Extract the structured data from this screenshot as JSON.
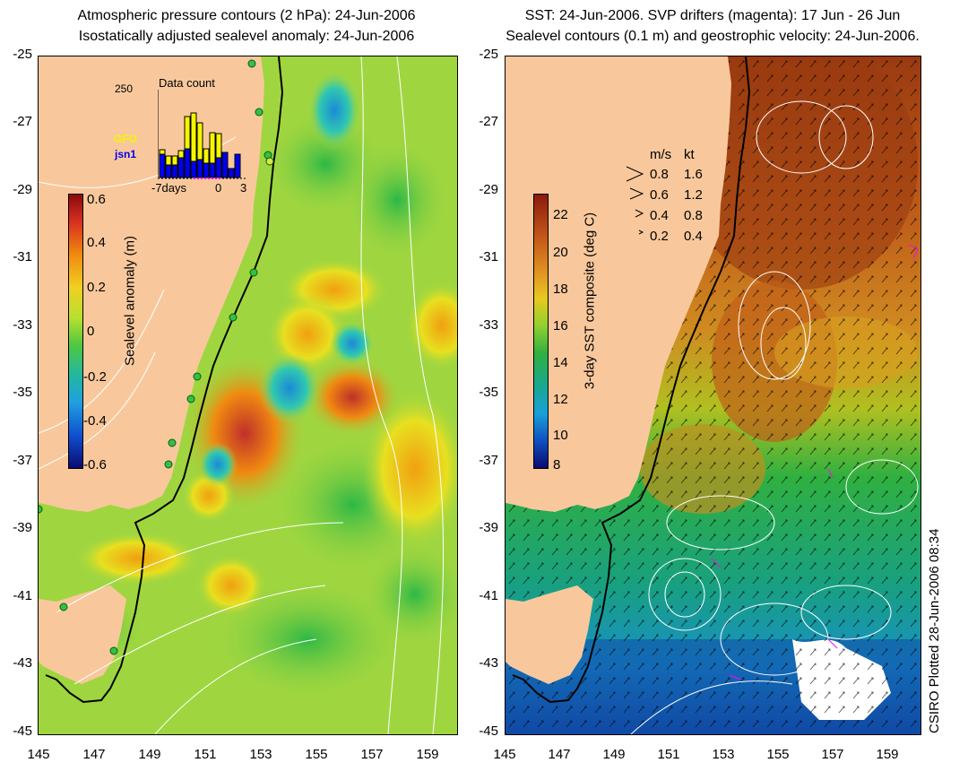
{
  "left": {
    "title_line1": "Atmospheric pressure contours (2 hPa): 24-Jun-2006",
    "title_line2": "Isostatically adjusted sealevel anomaly: 24-Jun-2006",
    "colorbar_label": "Sealevel anomaly (m)",
    "colorbar_ticks": [
      "0.6",
      "0.4",
      "0.2",
      "0",
      "-0.2",
      "-0.4",
      "-0.6"
    ],
    "inset": {
      "title": "Data count",
      "ymax": "250",
      "series": [
        "GFO",
        "jsn1"
      ],
      "series_colors": [
        "#f5f500",
        "#0000ee"
      ],
      "xticks": [
        "-7days",
        "0",
        "3"
      ]
    }
  },
  "right": {
    "title_line1": "SST: 24-Jun-2006. SVP drifters (magenta): 17 Jun - 26 Jun",
    "title_line2": "Sealevel contours (0.1 m) and geostrophic velocity: 24-Jun-2006.",
    "colorbar_label": "3-day SST composite (deg C)",
    "colorbar_ticks": [
      "22",
      "20",
      "18",
      "16",
      "14",
      "12",
      "10",
      "8"
    ],
    "velocity_legend": {
      "header_ms": "m/s",
      "header_kt": "kt",
      "rows": [
        {
          "ms": "0.8",
          "kt": "1.6"
        },
        {
          "ms": "0.6",
          "kt": "1.2"
        },
        {
          "ms": "0.4",
          "kt": "0.8"
        },
        {
          "ms": "0.2",
          "kt": "0.4"
        }
      ]
    }
  },
  "axes": {
    "y_ticks": [
      "-25",
      "-27",
      "-29",
      "-31",
      "-33",
      "-35",
      "-37",
      "-39",
      "-41",
      "-43",
      "-45"
    ],
    "x_ticks": [
      "145",
      "147",
      "149",
      "151",
      "153",
      "155",
      "157",
      "159"
    ]
  },
  "credit": "CSIRO Plotted 28-Jun-2006 08:34",
  "colors": {
    "land": "#f8c89c",
    "coast_line": "#000000",
    "contour": "#ffffff"
  }
}
